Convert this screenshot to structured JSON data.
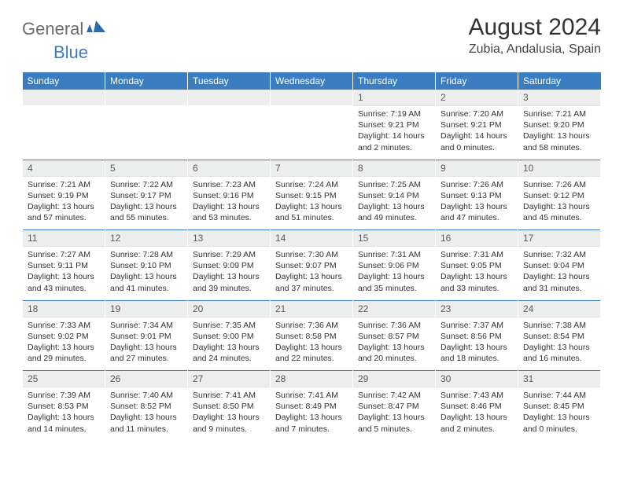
{
  "logo": {
    "general": "General",
    "blue": "Blue"
  },
  "title": "August 2024",
  "location": "Zubia, Andalusia, Spain",
  "colors": {
    "header_bg": "#3a7ec1",
    "header_text": "#ffffff",
    "daynum_bg": "#eceded",
    "daynum_text": "#595959",
    "body_text": "#333333",
    "logo_gray": "#6b6b6b",
    "logo_blue": "#3a7ec1",
    "week_rule": "#3a7ec1"
  },
  "weekdays": [
    "Sunday",
    "Monday",
    "Tuesday",
    "Wednesday",
    "Thursday",
    "Friday",
    "Saturday"
  ],
  "weeks": [
    [
      null,
      null,
      null,
      null,
      {
        "n": "1",
        "sunrise": "7:19 AM",
        "sunset": "9:21 PM",
        "day_h": 14,
        "day_m": 2
      },
      {
        "n": "2",
        "sunrise": "7:20 AM",
        "sunset": "9:21 PM",
        "day_h": 14,
        "day_m": 0
      },
      {
        "n": "3",
        "sunrise": "7:21 AM",
        "sunset": "9:20 PM",
        "day_h": 13,
        "day_m": 58
      }
    ],
    [
      {
        "n": "4",
        "sunrise": "7:21 AM",
        "sunset": "9:19 PM",
        "day_h": 13,
        "day_m": 57
      },
      {
        "n": "5",
        "sunrise": "7:22 AM",
        "sunset": "9:17 PM",
        "day_h": 13,
        "day_m": 55
      },
      {
        "n": "6",
        "sunrise": "7:23 AM",
        "sunset": "9:16 PM",
        "day_h": 13,
        "day_m": 53
      },
      {
        "n": "7",
        "sunrise": "7:24 AM",
        "sunset": "9:15 PM",
        "day_h": 13,
        "day_m": 51
      },
      {
        "n": "8",
        "sunrise": "7:25 AM",
        "sunset": "9:14 PM",
        "day_h": 13,
        "day_m": 49
      },
      {
        "n": "9",
        "sunrise": "7:26 AM",
        "sunset": "9:13 PM",
        "day_h": 13,
        "day_m": 47
      },
      {
        "n": "10",
        "sunrise": "7:26 AM",
        "sunset": "9:12 PM",
        "day_h": 13,
        "day_m": 45
      }
    ],
    [
      {
        "n": "11",
        "sunrise": "7:27 AM",
        "sunset": "9:11 PM",
        "day_h": 13,
        "day_m": 43
      },
      {
        "n": "12",
        "sunrise": "7:28 AM",
        "sunset": "9:10 PM",
        "day_h": 13,
        "day_m": 41
      },
      {
        "n": "13",
        "sunrise": "7:29 AM",
        "sunset": "9:09 PM",
        "day_h": 13,
        "day_m": 39
      },
      {
        "n": "14",
        "sunrise": "7:30 AM",
        "sunset": "9:07 PM",
        "day_h": 13,
        "day_m": 37
      },
      {
        "n": "15",
        "sunrise": "7:31 AM",
        "sunset": "9:06 PM",
        "day_h": 13,
        "day_m": 35
      },
      {
        "n": "16",
        "sunrise": "7:31 AM",
        "sunset": "9:05 PM",
        "day_h": 13,
        "day_m": 33
      },
      {
        "n": "17",
        "sunrise": "7:32 AM",
        "sunset": "9:04 PM",
        "day_h": 13,
        "day_m": 31
      }
    ],
    [
      {
        "n": "18",
        "sunrise": "7:33 AM",
        "sunset": "9:02 PM",
        "day_h": 13,
        "day_m": 29
      },
      {
        "n": "19",
        "sunrise": "7:34 AM",
        "sunset": "9:01 PM",
        "day_h": 13,
        "day_m": 27
      },
      {
        "n": "20",
        "sunrise": "7:35 AM",
        "sunset": "9:00 PM",
        "day_h": 13,
        "day_m": 24
      },
      {
        "n": "21",
        "sunrise": "7:36 AM",
        "sunset": "8:58 PM",
        "day_h": 13,
        "day_m": 22
      },
      {
        "n": "22",
        "sunrise": "7:36 AM",
        "sunset": "8:57 PM",
        "day_h": 13,
        "day_m": 20
      },
      {
        "n": "23",
        "sunrise": "7:37 AM",
        "sunset": "8:56 PM",
        "day_h": 13,
        "day_m": 18
      },
      {
        "n": "24",
        "sunrise": "7:38 AM",
        "sunset": "8:54 PM",
        "day_h": 13,
        "day_m": 16
      }
    ],
    [
      {
        "n": "25",
        "sunrise": "7:39 AM",
        "sunset": "8:53 PM",
        "day_h": 13,
        "day_m": 14
      },
      {
        "n": "26",
        "sunrise": "7:40 AM",
        "sunset": "8:52 PM",
        "day_h": 13,
        "day_m": 11
      },
      {
        "n": "27",
        "sunrise": "7:41 AM",
        "sunset": "8:50 PM",
        "day_h": 13,
        "day_m": 9
      },
      {
        "n": "28",
        "sunrise": "7:41 AM",
        "sunset": "8:49 PM",
        "day_h": 13,
        "day_m": 7
      },
      {
        "n": "29",
        "sunrise": "7:42 AM",
        "sunset": "8:47 PM",
        "day_h": 13,
        "day_m": 5
      },
      {
        "n": "30",
        "sunrise": "7:43 AM",
        "sunset": "8:46 PM",
        "day_h": 13,
        "day_m": 2
      },
      {
        "n": "31",
        "sunrise": "7:44 AM",
        "sunset": "8:45 PM",
        "day_h": 13,
        "day_m": 0
      }
    ]
  ]
}
